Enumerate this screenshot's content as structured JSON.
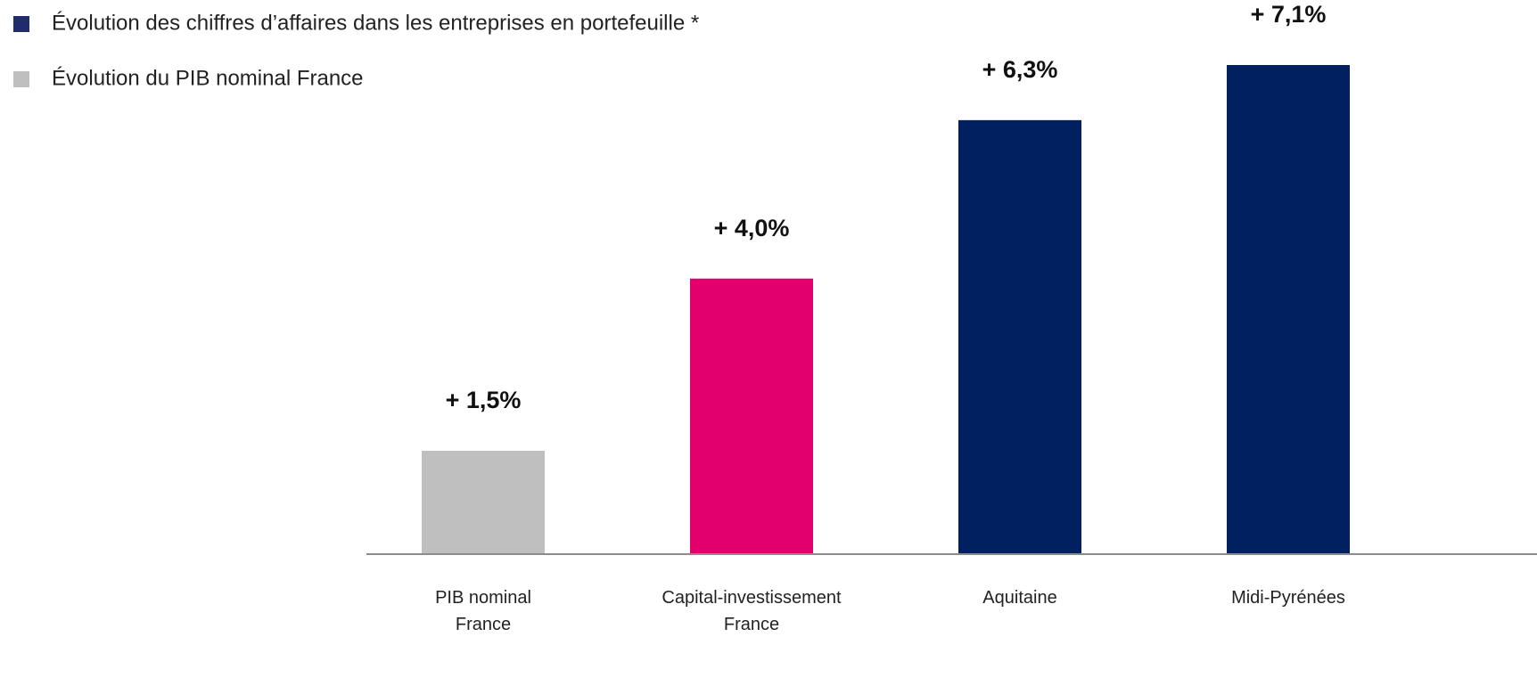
{
  "chart_data": {
    "type": "bar",
    "legend": [
      {
        "name": "Évolution des chiffres d’affaires dans les entreprises en portefeuille *",
        "color": "#1f2d6e"
      },
      {
        "name": "Évolution du PIB nominal France",
        "color": "#bfbfbf"
      }
    ],
    "categories": [
      "PIB nominal France",
      "Capital-investissement France",
      "Aquitaine",
      "Midi-Pyrénées"
    ],
    "values": [
      1.5,
      4.0,
      6.3,
      7.1
    ],
    "value_labels": [
      "+ 1,5%",
      "+ 4,0%",
      "+ 6,3%",
      "+ 7,1%"
    ],
    "colors": [
      "#bfbfbf",
      "#e2006f",
      "#002060",
      "#002060"
    ]
  }
}
